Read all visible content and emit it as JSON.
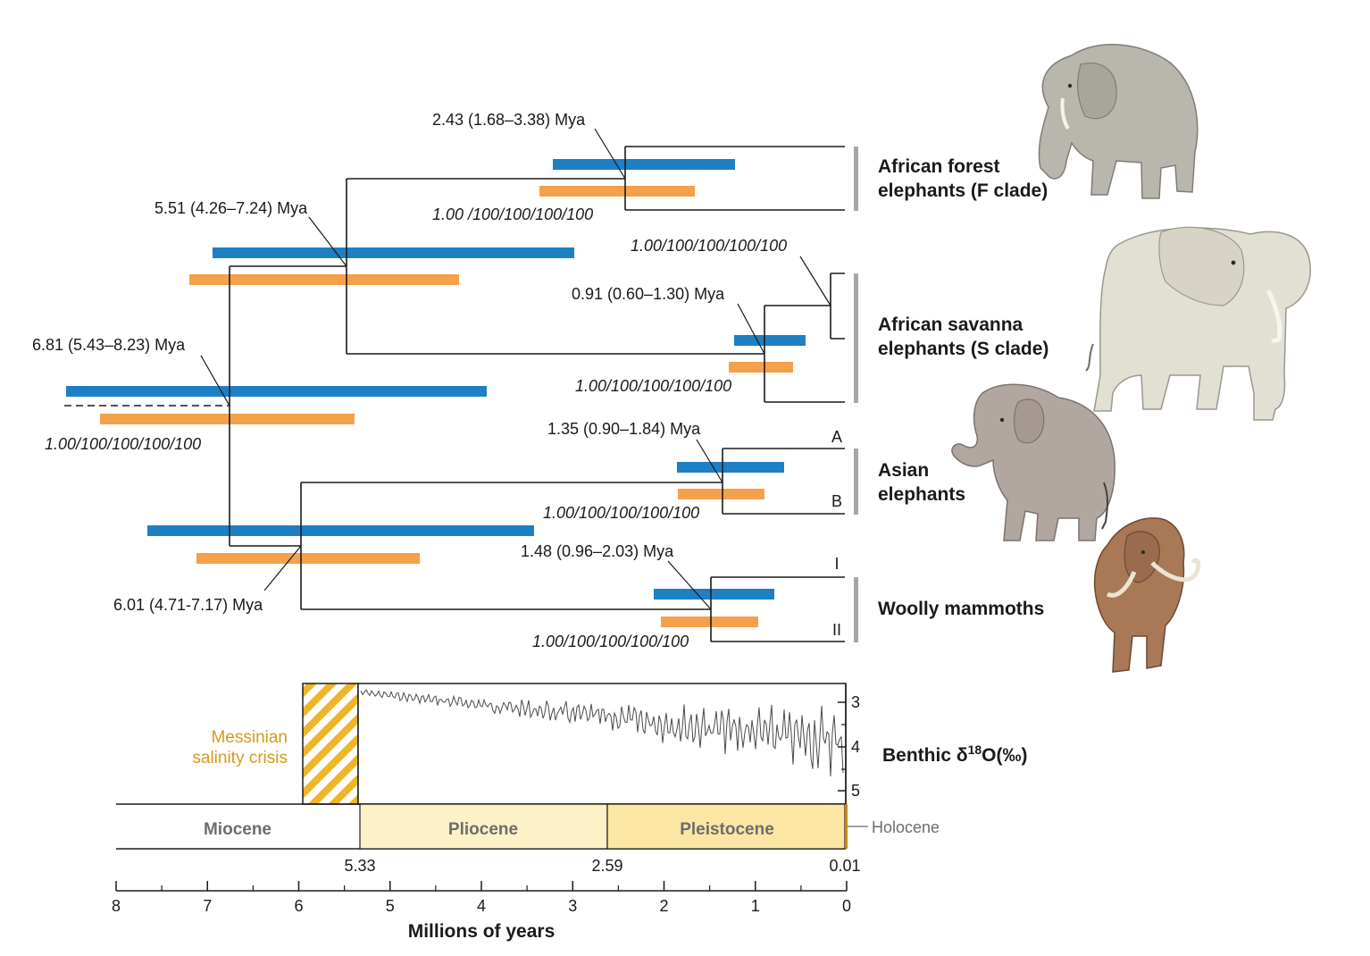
{
  "colors": {
    "bayesian_bar": "#1e7fc4",
    "ml_bar": "#f5a04a",
    "tree": "#1a1a1a",
    "clade_bar": "#a6a6a6",
    "messinian": "#d49a1a",
    "hatch": "#f0b428",
    "pliocene": "#fdf1c8",
    "pleistocene": "#fbe6a4"
  },
  "nodes": {
    "root": {
      "label": "6.81 (5.43–8.23) Mya",
      "support": "1.00/100/100/100/100"
    },
    "african": {
      "label": "5.51 (4.26–7.24) Mya"
    },
    "forest": {
      "label": "2.43 (1.68–3.38) Mya",
      "support": "1.00 /100/100/100/100"
    },
    "savanna": {
      "label": "0.91 (0.60–1.30) Mya",
      "support": "1.00/100/100/100/100",
      "sub_support": "1.00/100/100/100/100"
    },
    "asian_mammoth": {
      "label": "6.01 (4.71-7.17) Mya"
    },
    "asian": {
      "label": "1.35 (0.90–1.84) Mya",
      "support": "1.00/100/100/100/100"
    },
    "mammoth": {
      "label": "1.48 (0.96–2.03) Mya",
      "support": "1.00/100/100/100/100"
    }
  },
  "clades": {
    "forest": [
      "African forest",
      "elephants (F clade)"
    ],
    "savanna": [
      "African savanna",
      "elephants (S clade)"
    ],
    "asian": [
      "Asian",
      "elephants"
    ],
    "mammoth": [
      "Woolly mammoths"
    ]
  },
  "subclades": {
    "asian_a": "A",
    "asian_b": "B",
    "mammoth_i": "I",
    "mammoth_ii": "II"
  },
  "isotope": {
    "title_main": "Benthic δ",
    "title_sup": "18",
    "title_tail": "O(‰)",
    "ticks": [
      "3",
      "4",
      "5"
    ]
  },
  "messinian": [
    "Messinian",
    "salinity crisis"
  ],
  "epochs": {
    "miocene": "Miocene",
    "pliocene": "Pliocene",
    "pleistocene": "Pleistocene",
    "holocene": "Holocene",
    "boundaries": [
      "5.33",
      "2.59",
      "0.01"
    ]
  },
  "axis": {
    "title": "Millions of years",
    "ticks": [
      "8",
      "7",
      "6",
      "5",
      "4",
      "3",
      "2",
      "1",
      "0"
    ]
  },
  "animals": [
    "African forest elephant",
    "African savanna elephant",
    "Asian elephant",
    "Woolly mammoth"
  ]
}
